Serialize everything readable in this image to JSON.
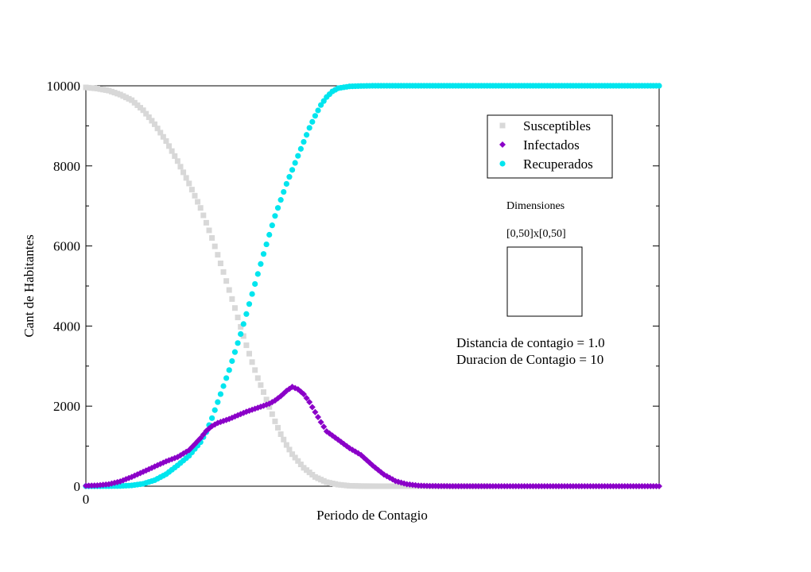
{
  "chart_data": {
    "type": "scatter",
    "title": "",
    "xlabel": "Periodo de Contagio",
    "ylabel": "Cant de Habitantes",
    "xlim": [
      0,
      500
    ],
    "ylim": [
      0,
      10000
    ],
    "x_tick_labels": [
      "0"
    ],
    "y_ticks": [
      0,
      2000,
      4000,
      6000,
      8000,
      10000
    ],
    "y_tick_labels": [
      "0",
      "2000",
      "4000",
      "6000",
      "8000",
      "10000"
    ],
    "grid": false,
    "legend_position": "top-right",
    "legend": [
      "Susceptibles",
      "Infectados",
      "Recuperados"
    ],
    "series": [
      {
        "name": "Susceptibles",
        "color": "#d8d8d8",
        "marker": "square",
        "points": [
          [
            0,
            9960
          ],
          [
            10,
            9930
          ],
          [
            20,
            9880
          ],
          [
            30,
            9780
          ],
          [
            40,
            9640
          ],
          [
            50,
            9390
          ],
          [
            60,
            9040
          ],
          [
            70,
            8620
          ],
          [
            80,
            8120
          ],
          [
            90,
            7560
          ],
          [
            100,
            6950
          ],
          [
            105,
            6580
          ],
          [
            110,
            6200
          ],
          [
            115,
            5780
          ],
          [
            120,
            5350
          ],
          [
            125,
            4900
          ],
          [
            130,
            4450
          ],
          [
            135,
            3980
          ],
          [
            140,
            3520
          ],
          [
            145,
            3100
          ],
          [
            150,
            2700
          ],
          [
            155,
            2350
          ],
          [
            160,
            1980
          ],
          [
            165,
            1620
          ],
          [
            170,
            1300
          ],
          [
            175,
            1030
          ],
          [
            180,
            800
          ],
          [
            190,
            460
          ],
          [
            200,
            230
          ],
          [
            210,
            100
          ],
          [
            220,
            40
          ],
          [
            230,
            10
          ],
          [
            240,
            3
          ],
          [
            250,
            1
          ],
          [
            260,
            0
          ],
          [
            300,
            0
          ],
          [
            350,
            0
          ]
        ]
      },
      {
        "name": "Infectados",
        "color": "#8b00c8",
        "marker": "diamond",
        "points": [
          [
            0,
            10
          ],
          [
            10,
            20
          ],
          [
            20,
            50
          ],
          [
            30,
            120
          ],
          [
            40,
            230
          ],
          [
            50,
            360
          ],
          [
            60,
            490
          ],
          [
            70,
            620
          ],
          [
            80,
            730
          ],
          [
            90,
            900
          ],
          [
            100,
            1200
          ],
          [
            105,
            1380
          ],
          [
            110,
            1500
          ],
          [
            115,
            1580
          ],
          [
            120,
            1630
          ],
          [
            125,
            1680
          ],
          [
            130,
            1740
          ],
          [
            135,
            1800
          ],
          [
            140,
            1860
          ],
          [
            145,
            1910
          ],
          [
            150,
            1960
          ],
          [
            155,
            2010
          ],
          [
            160,
            2060
          ],
          [
            165,
            2140
          ],
          [
            170,
            2250
          ],
          [
            175,
            2380
          ],
          [
            180,
            2480
          ],
          [
            185,
            2420
          ],
          [
            190,
            2300
          ],
          [
            195,
            2100
          ],
          [
            200,
            1850
          ],
          [
            205,
            1600
          ],
          [
            210,
            1370
          ],
          [
            220,
            1160
          ],
          [
            230,
            950
          ],
          [
            240,
            780
          ],
          [
            250,
            520
          ],
          [
            260,
            290
          ],
          [
            270,
            130
          ],
          [
            280,
            50
          ],
          [
            290,
            15
          ],
          [
            300,
            5
          ],
          [
            320,
            0
          ],
          [
            350,
            0
          ],
          [
            400,
            0
          ],
          [
            450,
            0
          ],
          [
            500,
            0
          ]
        ]
      },
      {
        "name": "Recuperados",
        "color": "#00e5ee",
        "marker": "circle",
        "points": [
          [
            0,
            0
          ],
          [
            10,
            0
          ],
          [
            20,
            2
          ],
          [
            30,
            5
          ],
          [
            40,
            20
          ],
          [
            50,
            60
          ],
          [
            60,
            150
          ],
          [
            70,
            300
          ],
          [
            80,
            520
          ],
          [
            90,
            760
          ],
          [
            100,
            1100
          ],
          [
            105,
            1350
          ],
          [
            110,
            1700
          ],
          [
            115,
            2100
          ],
          [
            120,
            2500
          ],
          [
            125,
            2900
          ],
          [
            130,
            3350
          ],
          [
            135,
            3800
          ],
          [
            140,
            4300
          ],
          [
            145,
            4800
          ],
          [
            150,
            5300
          ],
          [
            155,
            5800
          ],
          [
            160,
            6280
          ],
          [
            165,
            6750
          ],
          [
            170,
            7150
          ],
          [
            175,
            7550
          ],
          [
            180,
            7900
          ],
          [
            185,
            8250
          ],
          [
            190,
            8600
          ],
          [
            195,
            8950
          ],
          [
            200,
            9250
          ],
          [
            205,
            9520
          ],
          [
            210,
            9720
          ],
          [
            215,
            9860
          ],
          [
            220,
            9940
          ],
          [
            230,
            9985
          ],
          [
            240,
            9995
          ],
          [
            250,
            10000
          ],
          [
            300,
            10000
          ],
          [
            350,
            10000
          ],
          [
            400,
            10000
          ],
          [
            450,
            10000
          ],
          [
            500,
            10000
          ]
        ]
      }
    ]
  },
  "annotations": {
    "dimensions_title": "Dimensiones",
    "dimensions_value": "[0,50]x[0,50]",
    "distance": "Distancia de contagio = 1.0",
    "duration": "Duracion de Contagio = 10"
  }
}
